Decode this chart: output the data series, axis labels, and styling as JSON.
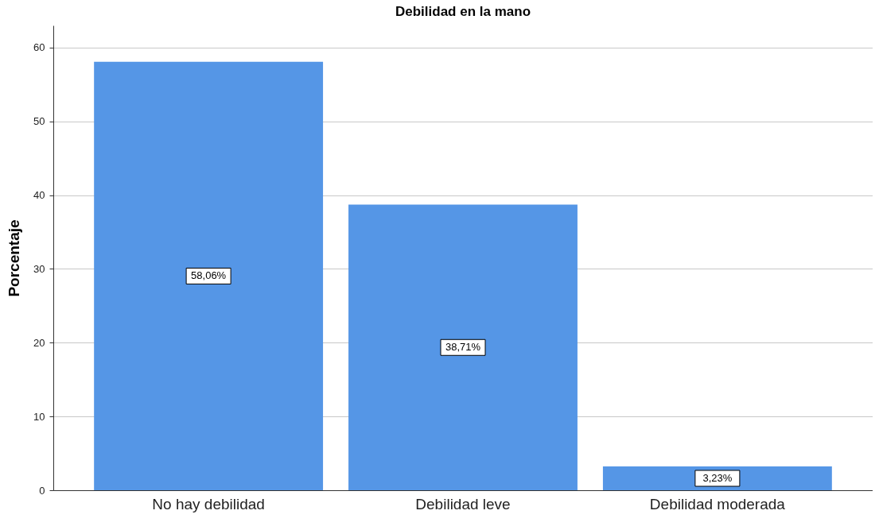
{
  "chart_data": {
    "type": "bar",
    "title": "Debilidad en la mano",
    "ylabel": "Porcentaje",
    "categories": [
      "No hay debilidad",
      "Debilidad leve",
      "Debilidad moderada"
    ],
    "values": [
      58.06,
      38.71,
      3.23
    ],
    "color": "#5596e6",
    "value_labels": [
      "58,06%",
      "38,71%",
      "3,23%"
    ],
    "ylim": [
      0,
      63
    ],
    "yticks": [
      0,
      10,
      20,
      30,
      40,
      50,
      60
    ],
    "grid": "y"
  }
}
